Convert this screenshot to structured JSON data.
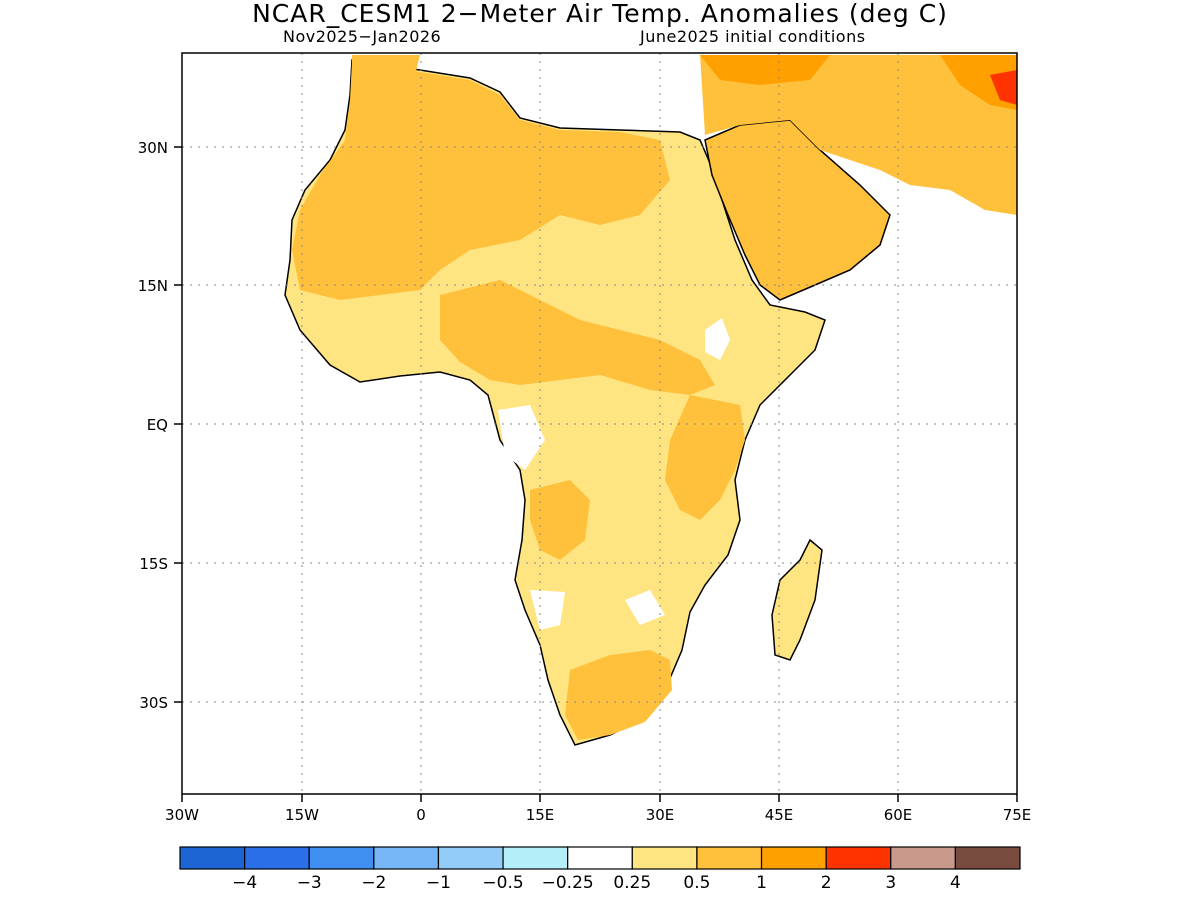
{
  "title": "NCAR_CESM1 2−Meter Air Temp. Anomalies (deg C)",
  "subtitle_left": "Nov2025−Jan2026",
  "subtitle_right": "June2025 initial conditions",
  "map": {
    "lon_range": [
      -30,
      75
    ],
    "lat_range": [
      -40,
      40
    ],
    "lon_ticks": [
      "30W",
      "15W",
      "0",
      "15E",
      "30E",
      "45E",
      "60E",
      "75E"
    ],
    "lat_ticks": [
      "30N",
      "15N",
      "EQ",
      "15S",
      "30S"
    ],
    "gridlines": true,
    "projection": "cylindrical equidistant"
  },
  "colorbar": {
    "colors": [
      "#1d64d4",
      "#2a6fe8",
      "#3e8ff0",
      "#76b6f7",
      "#93ccf8",
      "#b4eef8",
      "#ffffff",
      "#ffe482",
      "#ffc13c",
      "#ff9f00",
      "#ff3300",
      "#c99a8c",
      "#7a4c40"
    ],
    "labels": [
      "−4",
      "−3",
      "−2",
      "−1",
      "−0.5",
      "−0.25",
      "0.25",
      "0.5",
      "1",
      "2",
      "3",
      "4"
    ]
  }
}
